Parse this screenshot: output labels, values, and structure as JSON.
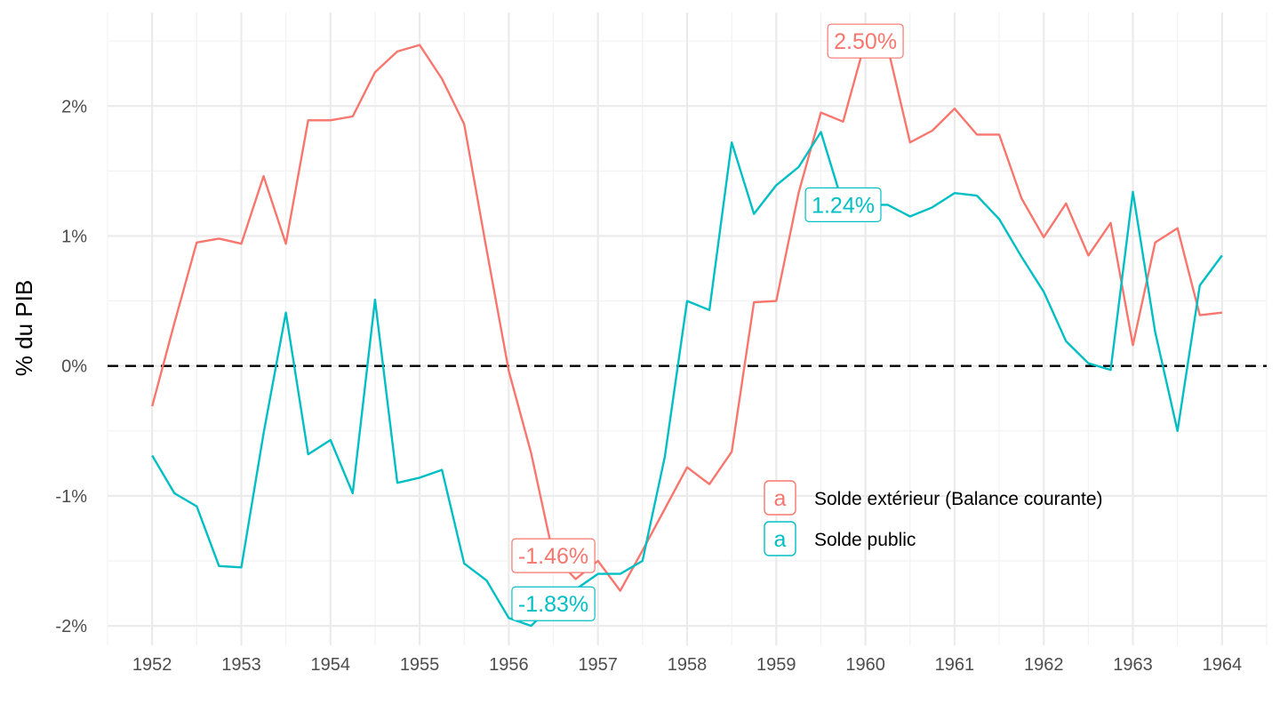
{
  "chart_data": {
    "type": "line",
    "title": "",
    "xlabel": "",
    "ylabel": "% du PIB",
    "xlim": [
      1951.5,
      1964.5
    ],
    "ylim": [
      -2.15,
      2.72
    ],
    "x_ticks": [
      "1952",
      "1953",
      "1954",
      "1955",
      "1956",
      "1957",
      "1958",
      "1959",
      "1960",
      "1961",
      "1962",
      "1963",
      "1964"
    ],
    "y_ticks": [
      {
        "value": -2,
        "label": "-2%"
      },
      {
        "value": -1,
        "label": "-1%"
      },
      {
        "value": 0,
        "label": "0%"
      },
      {
        "value": 1,
        "label": "1%"
      },
      {
        "value": 2,
        "label": "2%"
      }
    ],
    "reference_line": {
      "y": 0,
      "style": "dashed",
      "color": "#000000"
    },
    "grid": true,
    "legend_position": "bottom-right",
    "series": [
      {
        "name": "Solde extérieur (Balance courante)",
        "color": "#F8766D",
        "x": [
          1952,
          1952.25,
          1952.5,
          1952.75,
          1953,
          1953.25,
          1953.5,
          1953.75,
          1954,
          1954.25,
          1954.5,
          1954.75,
          1955,
          1955.25,
          1955.5,
          1955.75,
          1956,
          1956.25,
          1956.5,
          1956.75,
          1957,
          1957.25,
          1957.5,
          1957.75,
          1958,
          1958.25,
          1958.5,
          1958.75,
          1959,
          1959.25,
          1959.5,
          1959.75,
          1960,
          1960.25,
          1960.5,
          1960.75,
          1961,
          1961.25,
          1961.5,
          1961.75,
          1962,
          1962.25,
          1962.5,
          1962.75,
          1963,
          1963.25,
          1963.5,
          1963.75,
          1964
        ],
        "values": [
          -0.31,
          0.33,
          0.95,
          0.98,
          0.94,
          1.46,
          0.94,
          1.89,
          1.89,
          1.92,
          2.26,
          2.42,
          2.47,
          2.21,
          1.86,
          0.9,
          -0.04,
          -0.67,
          -1.46,
          -1.64,
          -1.5,
          -1.73,
          -1.42,
          -1.1,
          -0.78,
          -0.91,
          -0.66,
          0.49,
          0.5,
          1.33,
          1.95,
          1.88,
          2.5,
          2.45,
          1.72,
          1.81,
          1.98,
          1.78,
          1.78,
          1.29,
          0.99,
          1.25,
          0.85,
          1.1,
          0.16,
          0.95,
          1.06,
          0.39,
          0.41
        ],
        "labels": [
          {
            "x": 1960,
            "value": 2.5,
            "text": "2.50%"
          },
          {
            "x": 1956.5,
            "value": -1.46,
            "text": "-1.46%"
          }
        ]
      },
      {
        "name": "Solde public",
        "color": "#00BFC4",
        "x": [
          1952,
          1952.25,
          1952.5,
          1952.75,
          1953,
          1953.25,
          1953.5,
          1953.75,
          1954,
          1954.25,
          1954.5,
          1954.75,
          1955,
          1955.25,
          1955.5,
          1955.75,
          1956,
          1956.25,
          1956.5,
          1956.75,
          1957,
          1957.25,
          1957.5,
          1957.75,
          1958,
          1958.25,
          1958.5,
          1958.75,
          1959,
          1959.25,
          1959.5,
          1959.75,
          1960,
          1960.25,
          1960.5,
          1960.75,
          1961,
          1961.25,
          1961.5,
          1961.75,
          1962,
          1962.25,
          1962.5,
          1962.75,
          1963,
          1963.25,
          1963.5,
          1963.75,
          1964
        ],
        "values": [
          -0.69,
          -0.98,
          -1.08,
          -1.54,
          -1.55,
          -0.52,
          0.41,
          -0.68,
          -0.57,
          -0.98,
          0.51,
          -0.9,
          -0.86,
          -0.8,
          -1.52,
          -1.65,
          -1.94,
          -2.0,
          -1.83,
          -1.72,
          -1.6,
          -1.6,
          -1.5,
          -0.7,
          0.5,
          0.43,
          1.72,
          1.17,
          1.39,
          1.53,
          1.8,
          1.24,
          1.24,
          1.24,
          1.15,
          1.22,
          1.33,
          1.31,
          1.13,
          0.84,
          0.57,
          0.19,
          0.02,
          -0.03,
          1.34,
          0.26,
          -0.5,
          0.62,
          0.85
        ],
        "labels": [
          {
            "x": 1959.75,
            "value": 1.24,
            "text": "1.24%"
          },
          {
            "x": 1956.5,
            "value": -1.83,
            "text": "-1.83%"
          }
        ]
      }
    ],
    "legend": {
      "key_glyph": "a",
      "entries": [
        "Solde extérieur (Balance courante)",
        "Solde public"
      ]
    }
  }
}
